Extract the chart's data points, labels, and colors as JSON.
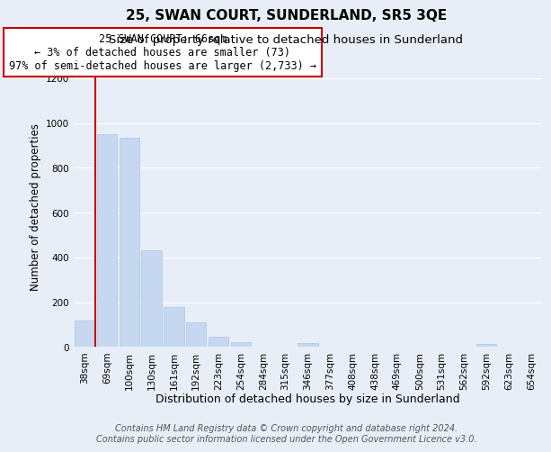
{
  "title": "25, SWAN COURT, SUNDERLAND, SR5 3QE",
  "subtitle": "Size of property relative to detached houses in Sunderland",
  "xlabel": "Distribution of detached houses by size in Sunderland",
  "ylabel": "Number of detached properties",
  "bar_labels": [
    "38sqm",
    "69sqm",
    "100sqm",
    "130sqm",
    "161sqm",
    "192sqm",
    "223sqm",
    "254sqm",
    "284sqm",
    "315sqm",
    "346sqm",
    "377sqm",
    "408sqm",
    "438sqm",
    "469sqm",
    "500sqm",
    "531sqm",
    "562sqm",
    "592sqm",
    "623sqm",
    "654sqm"
  ],
  "bar_values": [
    120,
    950,
    935,
    430,
    180,
    110,
    45,
    20,
    0,
    0,
    18,
    0,
    0,
    0,
    0,
    0,
    0,
    0,
    12,
    0,
    0
  ],
  "bar_color": "#c5d8f0",
  "bar_edge_color": "#a8c4e8",
  "annotation_box_text_line1": "25 SWAN COURT: 66sqm",
  "annotation_box_text_line2": "← 3% of detached houses are smaller (73)",
  "annotation_box_text_line3": "97% of semi-detached houses are larger (2,733) →",
  "annotation_box_color": "#ffffff",
  "annotation_box_edge_color": "#cc0000",
  "marker_line_color": "#cc0000",
  "ylim": [
    0,
    1250
  ],
  "yticks": [
    0,
    200,
    400,
    600,
    800,
    1000,
    1200
  ],
  "footer_line1": "Contains HM Land Registry data © Crown copyright and database right 2024.",
  "footer_line2": "Contains public sector information licensed under the Open Government Licence v3.0.",
  "title_fontsize": 11,
  "subtitle_fontsize": 9.5,
  "xlabel_fontsize": 9,
  "ylabel_fontsize": 8.5,
  "tick_fontsize": 7.5,
  "footer_fontsize": 7,
  "annotation_fontsize": 8.5,
  "bg_color": "#e8eef8",
  "plot_bg_color": "#e8eef8",
  "grid_color": "#ffffff",
  "marker_bar_index": 1
}
